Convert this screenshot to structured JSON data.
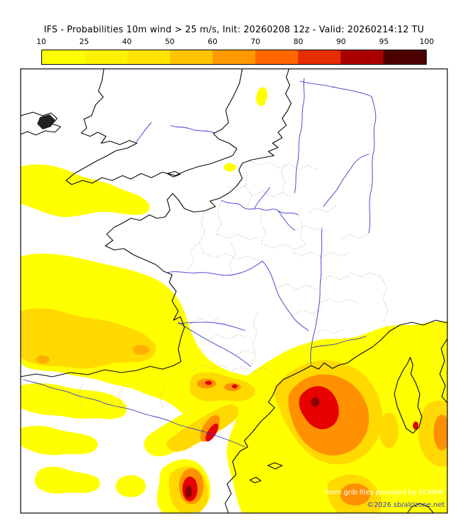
{
  "title": "IFS - Probabilities 10m wind > 25 m/s, Init: 20260208 12z - Valid: 20260214:12 TU",
  "colorbar": {
    "labels": [
      "10",
      "25",
      "40",
      "50",
      "60",
      "70",
      "80",
      "90",
      "95",
      "100"
    ],
    "colors": [
      "#ffff00",
      "#fdf300",
      "#ffe400",
      "#ffc400",
      "#ff9900",
      "#ff6600",
      "#e62e00",
      "#aa0000",
      "#4c0000"
    ]
  },
  "attribution": {
    "line1": "from grib files provided by ECMWF",
    "line2": "©2026 sb/alrizone.net"
  },
  "map": {
    "coastline_color": "#000000",
    "river_color": "#3333cc",
    "admin_border_color": "#aaaaaa",
    "level_colors": {
      "yellow": "#ffff00",
      "gold": "#ffd900",
      "orange": "#ff9100",
      "orange2": "#ffae00",
      "red": "#e60000",
      "darkred": "#8b0000"
    }
  }
}
